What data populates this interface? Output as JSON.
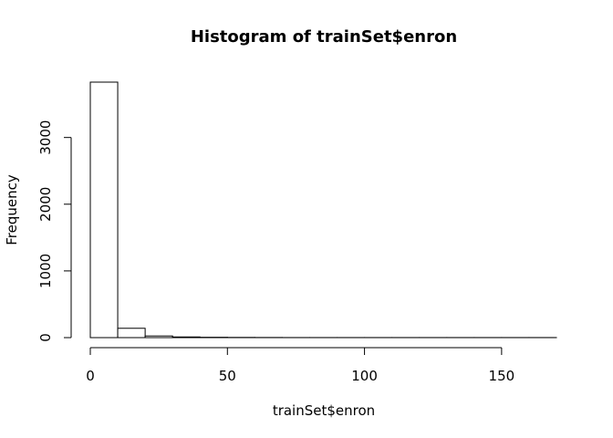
{
  "chart_data": {
    "type": "bar",
    "title": "Histogram of trainSet$enron",
    "xlabel": "trainSet$enron",
    "ylabel": "Frequency",
    "bin_edges": [
      0,
      10,
      20,
      30,
      40,
      50,
      60,
      70,
      80,
      90,
      100,
      110,
      120,
      130,
      140,
      150,
      160,
      170
    ],
    "values": [
      3830,
      140,
      25,
      10,
      5,
      3,
      2,
      1,
      1,
      1,
      1,
      1,
      1,
      1,
      1,
      1,
      1
    ],
    "xlim": [
      0,
      170
    ],
    "ylim": [
      0,
      3830
    ],
    "xticks": [
      0,
      50,
      100,
      150
    ],
    "xtick_labels": [
      "0",
      "50",
      "100",
      "150"
    ],
    "yticks": [
      0,
      1000,
      2000,
      3000
    ],
    "ytick_labels": [
      "0",
      "1000",
      "2000",
      "3000"
    ],
    "grid": false,
    "legend": "none"
  }
}
